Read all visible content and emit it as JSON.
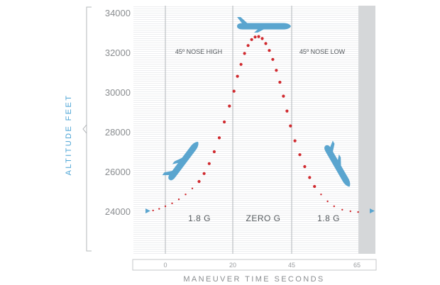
{
  "chart_data": {
    "type": "scatter",
    "title": "",
    "ylabel": "ALTITUDE FEET",
    "xlabel": "MANEUVER TIME SECONDS",
    "ylim": [
      22000,
      34000
    ],
    "xlim": [
      -9,
      72
    ],
    "y_ticks": [
      "34000",
      "32000",
      "30000",
      "28000",
      "26000",
      "24000"
    ],
    "y_tick_values": [
      34000,
      32000,
      30000,
      28000,
      26000,
      24000
    ],
    "x_ticks": [
      "0",
      "20",
      "45",
      "65"
    ],
    "x_tick_values": [
      0,
      20,
      45,
      65
    ],
    "phase_boundaries": [
      0,
      20,
      45,
      65
    ],
    "phase_labels": [
      "1.8 G",
      "ZERO G",
      "1.8 G"
    ],
    "annotations": [
      "45º NOSE HIGH",
      "45º NOSE LOW"
    ],
    "grid": true,
    "series": [
      {
        "color": "#d0292e",
        "points": [
          [
            -9,
            24000
          ],
          [
            -6,
            24040
          ],
          [
            -3,
            24120
          ],
          [
            0,
            24250
          ],
          [
            2,
            24400
          ],
          [
            4,
            24600
          ],
          [
            6,
            24850
          ],
          [
            8,
            25150
          ],
          [
            10,
            25500
          ],
          [
            11.5,
            25900
          ],
          [
            13,
            26400
          ],
          [
            14.5,
            27000
          ],
          [
            16,
            27700
          ],
          [
            17.5,
            28500
          ],
          [
            19,
            29300
          ],
          [
            20.5,
            30050
          ],
          [
            22,
            30800
          ],
          [
            23.5,
            31400
          ],
          [
            25,
            31950
          ],
          [
            26.5,
            32350
          ],
          [
            28,
            32650
          ],
          [
            29.5,
            32780
          ],
          [
            31,
            32800
          ],
          [
            32.5,
            32700
          ],
          [
            34,
            32450
          ],
          [
            35.5,
            32100
          ],
          [
            37,
            31650
          ],
          [
            38.5,
            31100
          ],
          [
            40,
            30500
          ],
          [
            41.5,
            29800
          ],
          [
            43,
            29050
          ],
          [
            44.5,
            28300
          ],
          [
            46,
            27550
          ],
          [
            47.5,
            26850
          ],
          [
            49,
            26250
          ],
          [
            50.5,
            25700
          ],
          [
            52,
            25250
          ],
          [
            54,
            24850
          ],
          [
            56,
            24500
          ],
          [
            58,
            24250
          ],
          [
            60.5,
            24080
          ],
          [
            63,
            24000
          ],
          [
            65.5,
            23960
          ]
        ]
      }
    ],
    "colors": {
      "trajectory": "#d0292e",
      "aircraft": "#5aa5cf",
      "axis_label": "#4aa3d4",
      "phase_divider": "#b0b4b8",
      "right_band": "#d5d7d9"
    }
  },
  "icons": [
    "airplane-icon",
    "arrow-right-icon"
  ]
}
